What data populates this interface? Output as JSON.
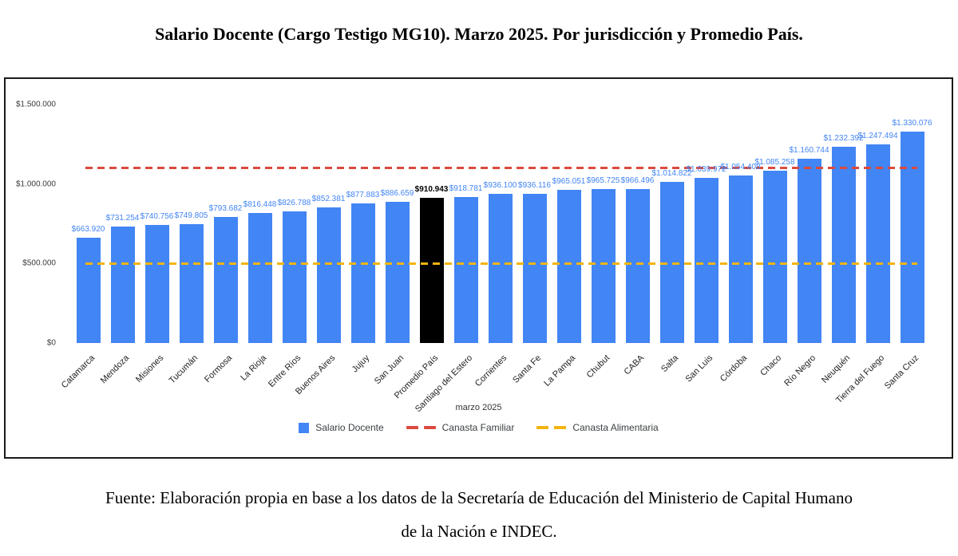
{
  "page": {
    "title": "Salario Docente (Cargo Testigo MG10). Marzo 2025. Por jurisdicción y Promedio País.",
    "source_line1": "Fuente: Elaboración propia en base a los datos de la Secretaría de Educación del Ministerio de Capital Humano",
    "source_line2": "de la Nación e INDEC."
  },
  "chart_data": {
    "type": "bar",
    "title": "Salario Docente (Cargo Testigo MG10). Marzo 2025. Por jurisdicción y Promedio País.",
    "xlabel": "marzo 2025",
    "ylabel": "",
    "ylim": [
      0,
      1500000
    ],
    "grid": false,
    "legend_position": "bottom",
    "colors": {
      "bar": "#4285f4",
      "highlight_bar": "#000000",
      "value_label": "#4285f4",
      "canasta_familiar": "#db4a3d",
      "canasta_alimentaria": "#f2b50e"
    },
    "y_ticks": [
      {
        "label": "$0",
        "value": 0
      },
      {
        "label": "$500.000",
        "value": 500000
      },
      {
        "label": "$1.000.000",
        "value": 1000000
      },
      {
        "label": "$1.500.000",
        "value": 1500000
      }
    ],
    "series_name": "Salario Docente",
    "bars": [
      {
        "category": "Catamarca",
        "value": 663920,
        "label": "$663.920"
      },
      {
        "category": "Mendoza",
        "value": 731254,
        "label": "$731.254"
      },
      {
        "category": "Misiones",
        "value": 740756,
        "label": "$740.756"
      },
      {
        "category": "Tucumán",
        "value": 749805,
        "label": "$749.805"
      },
      {
        "category": "Formosa",
        "value": 793682,
        "label": "$793.682"
      },
      {
        "category": "La Rioja",
        "value": 816448,
        "label": "$816.448"
      },
      {
        "category": "Entre Ríos",
        "value": 826788,
        "label": "$826.788"
      },
      {
        "category": "Buenos Aires",
        "value": 852381,
        "label": "$852.381"
      },
      {
        "category": "Jujuy",
        "value": 877883,
        "label": "$877.883"
      },
      {
        "category": "San Juan",
        "value": 886659,
        "label": "$886.659"
      },
      {
        "category": "Promedio País",
        "value": 910943,
        "label": "$910.943",
        "highlight": true
      },
      {
        "category": "Santiago del Estero",
        "value": 918781,
        "label": "$918.781"
      },
      {
        "category": "Corrientes",
        "value": 936100,
        "label": "$936.100"
      },
      {
        "category": "Santa Fe",
        "value": 936116,
        "label": "$936.116"
      },
      {
        "category": "La Pampa",
        "value": 965051,
        "label": "$965.051"
      },
      {
        "category": "Chubut",
        "value": 965725,
        "label": "$965.725"
      },
      {
        "category": "CABA",
        "value": 966496,
        "label": "$966.496"
      },
      {
        "category": "Salta",
        "value": 1014822,
        "label": "$1.014.822"
      },
      {
        "category": "San Luis",
        "value": 1039972,
        "label": "$1.039.972"
      },
      {
        "category": "Córdoba",
        "value": 1054408,
        "label": "$1.054.408"
      },
      {
        "category": "Chaco",
        "value": 1085258,
        "label": "$1.085.258"
      },
      {
        "category": "Río Negro",
        "value": 1160744,
        "label": "$1.160.744"
      },
      {
        "category": "Neuquén",
        "value": 1232392,
        "label": "$1.232.392"
      },
      {
        "category": "Tierra del Fuego",
        "value": 1247494,
        "label": "$1.247.494"
      },
      {
        "category": "Santa Cruz",
        "value": 1330076,
        "label": "$1.330.076"
      }
    ],
    "reference_lines": [
      {
        "name": "Canasta Familiar",
        "value_estimate": 1105000,
        "style": "dashed",
        "color": "#db4a3d"
      },
      {
        "name": "Canasta Alimentaria",
        "value_estimate": 500000,
        "style": "dashed",
        "color": "#f2b50e"
      }
    ],
    "legend_items": [
      {
        "label": "Salario Docente",
        "swatch": "square",
        "color": "#4285f4"
      },
      {
        "label": "Canasta Familiar",
        "swatch": "dashes",
        "color": "#db4a3d"
      },
      {
        "label": "Canasta Alimentaria",
        "swatch": "dashes",
        "color": "#f2b50e"
      }
    ]
  }
}
